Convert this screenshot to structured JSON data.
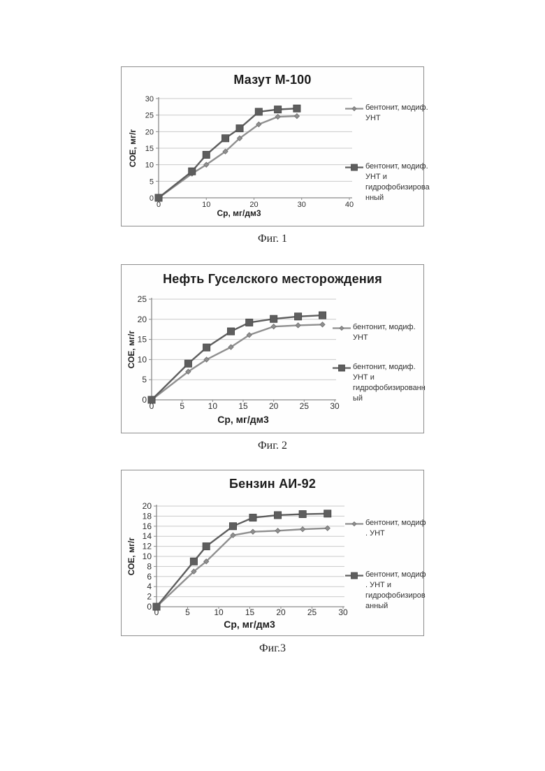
{
  "page": {
    "background": "#ffffff",
    "figures": [
      {
        "caption": "Фиг. 1"
      },
      {
        "caption": "Фиг. 2"
      },
      {
        "caption": "Фиг.3"
      }
    ]
  },
  "colors": {
    "grid": "#c9c9c9",
    "axis": "#8a8a8a",
    "series1": "#8f8f8f",
    "series2": "#5e5e5e"
  },
  "chart_data": [
    {
      "type": "line",
      "title": "Мазут М-100",
      "xlabel": "Ср, мг/дм3",
      "ylabel": "СОЕ, мг/г",
      "xlim": [
        0,
        40
      ],
      "ylim": [
        0,
        30
      ],
      "xticks": [
        0,
        10,
        20,
        30,
        40
      ],
      "yticks": [
        0,
        5,
        10,
        15,
        20,
        25,
        30
      ],
      "grid": "horizontal-only",
      "legend_position": "right",
      "series": [
        {
          "name": "бентонит, модиф. УНТ",
          "legend_lines": [
            "бентонит, модиф.",
            "УНТ"
          ],
          "marker": "diamond",
          "color": "#8f8f8f",
          "x": [
            0,
            7,
            10,
            14,
            17,
            21,
            25,
            29
          ],
          "y": [
            0,
            7.3,
            10,
            14,
            18,
            22.2,
            24.5,
            24.7
          ]
        },
        {
          "name": "бентонит, модиф. УНТ и гидрофобизированный",
          "legend_lines": [
            "бентонит, модиф.",
            "УНТ и",
            "гидрофобизирова",
            "нный"
          ],
          "marker": "square",
          "color": "#5e5e5e",
          "x": [
            0,
            7,
            10,
            14,
            17,
            21,
            25,
            29
          ],
          "y": [
            0,
            8,
            13,
            18,
            21,
            26,
            26.7,
            27
          ]
        }
      ]
    },
    {
      "type": "line",
      "title": "Нефть Гуселского месторождения",
      "xlabel": "Ср, мг/дм3",
      "ylabel": "СОЕ, мг/г",
      "xlim": [
        0,
        30
      ],
      "ylim": [
        0,
        25
      ],
      "xticks": [
        0,
        5,
        10,
        15,
        20,
        25,
        30
      ],
      "yticks": [
        0,
        5,
        10,
        15,
        20,
        25
      ],
      "grid": "horizontal-only",
      "legend_position": "right",
      "series": [
        {
          "name": "бентонит, модиф. УНТ",
          "legend_lines": [
            "бентонит, модиф.",
            "УНТ"
          ],
          "marker": "diamond",
          "color": "#8f8f8f",
          "x": [
            0,
            6,
            9,
            13,
            16,
            20,
            24,
            28
          ],
          "y": [
            0,
            7,
            10,
            13.1,
            16.1,
            18.2,
            18.5,
            18.7
          ]
        },
        {
          "name": "бентонит, модиф. УНТ и гидрофобизированный",
          "legend_lines": [
            "бентонит, модиф.",
            "УНТ и",
            "гидрофобизированн",
            "ый"
          ],
          "marker": "square",
          "color": "#5e5e5e",
          "x": [
            0,
            6,
            9,
            13,
            16,
            20,
            24,
            28
          ],
          "y": [
            0,
            9,
            13,
            17,
            19.2,
            20.1,
            20.7,
            21
          ]
        }
      ]
    },
    {
      "type": "line",
      "title": "Бензин АИ-92",
      "xlabel": "Ср, мг/дм3",
      "ylabel": "СОЕ, мг/г",
      "xlim": [
        0,
        30
      ],
      "ylim": [
        0,
        20
      ],
      "xticks": [
        0,
        5,
        10,
        15,
        20,
        25,
        30
      ],
      "yticks": [
        0,
        2,
        4,
        6,
        8,
        10,
        12,
        14,
        16,
        18,
        20
      ],
      "grid": "horizontal-only",
      "legend_position": "right",
      "series": [
        {
          "name": "бентонит, модиф. УНТ",
          "legend_lines": [
            "бентонит, модиф",
            ". УНТ"
          ],
          "marker": "diamond",
          "color": "#8f8f8f",
          "x": [
            0,
            6,
            8,
            12.3,
            15.5,
            19.5,
            23.5,
            27.5
          ],
          "y": [
            0,
            7,
            9,
            14.2,
            14.9,
            15.1,
            15.4,
            15.6
          ]
        },
        {
          "name": "бентонит, модиф. УНТ и гидрофобизированный",
          "legend_lines": [
            "бентонит, модиф",
            ". УНТ и",
            "гидрофобизиров",
            "анный"
          ],
          "marker": "square",
          "color": "#5e5e5e",
          "x": [
            0,
            6,
            8,
            12.3,
            15.5,
            19.5,
            23.5,
            27.5
          ],
          "y": [
            0,
            9,
            12,
            16,
            17.7,
            18.2,
            18.4,
            18.5
          ]
        }
      ]
    }
  ]
}
